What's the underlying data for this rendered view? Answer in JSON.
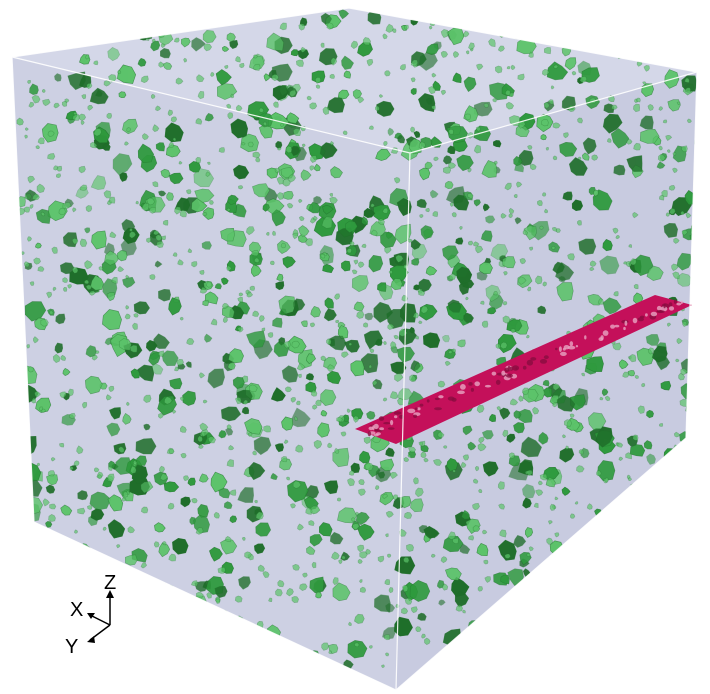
{
  "scene": {
    "background_color": "#ffffff",
    "box_face_color": "#cdd0e3",
    "box_edge_color": "#ffffff",
    "particle_color": "#2f9a3e",
    "particle_dark_color": "#1f6e2a",
    "particle_light_color": "#5cc36a",
    "slice_color": "#c4105a"
  },
  "axes": {
    "x_label": "X",
    "y_label": "Y",
    "z_label": "Z",
    "icon": "axes-orientation-icon"
  }
}
